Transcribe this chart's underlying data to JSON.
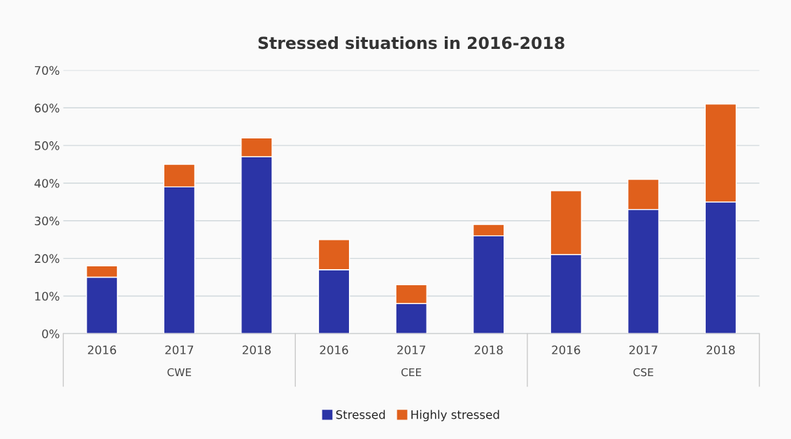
{
  "chart_data": {
    "type": "bar",
    "title": "Stressed situations in 2016-2018",
    "categories": [
      "2016",
      "2017",
      "2018",
      "2016",
      "2017",
      "2018",
      "2016",
      "2017",
      "2018"
    ],
    "series": [
      {
        "name": "Stressed",
        "color": "#2b34a6",
        "values": [
          15,
          39,
          47,
          17,
          8,
          26,
          21,
          33,
          35
        ]
      },
      {
        "name": "Highly stressed",
        "color": "#e0601c",
        "values": [
          3,
          6,
          5,
          8,
          5,
          3,
          17,
          8,
          26
        ]
      }
    ],
    "stacked": true,
    "ylim": [
      0,
      70
    ],
    "yticks": [
      {
        "value": 0,
        "label": "0%"
      },
      {
        "value": 10,
        "label": "10%"
      },
      {
        "value": 20,
        "label": "20%"
      },
      {
        "value": 30,
        "label": "30%"
      },
      {
        "value": 40,
        "label": "40%"
      },
      {
        "value": 50,
        "label": "50%"
      },
      {
        "value": 60,
        "label": "60%"
      },
      {
        "value": 70,
        "label": "70%"
      }
    ],
    "annotations": [
      "CWE",
      "CEE",
      "CSE"
    ],
    "grid": "y",
    "legend": "bottom"
  }
}
